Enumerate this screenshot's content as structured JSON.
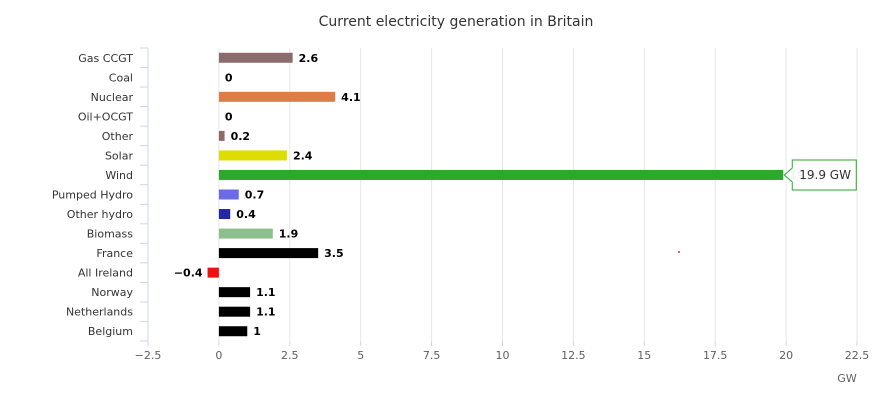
{
  "chart_data": {
    "type": "bar",
    "orientation": "horizontal",
    "title": "Current electricity generation in Britain",
    "xlabel": "GW",
    "ylabel": "",
    "xlim": [
      -2.5,
      22.5
    ],
    "xticks": [
      -2.5,
      0,
      2.5,
      5,
      7.5,
      10,
      12.5,
      15,
      17.5,
      20,
      22.5
    ],
    "xtick_labels": [
      "−2.5",
      "0",
      "2.5",
      "5",
      "7.5",
      "10",
      "12.5",
      "15",
      "17.5",
      "20",
      "22.5"
    ],
    "grid": true,
    "legend": "none",
    "categories": [
      "Gas CCGT",
      "Coal",
      "Nuclear",
      "Oil+OCGT",
      "Other",
      "Solar",
      "Wind",
      "Pumped Hydro",
      "Other hydro",
      "Biomass",
      "France",
      "All Ireland",
      "Norway",
      "Netherlands",
      "Belgium"
    ],
    "values": [
      2.6,
      0,
      4.1,
      0,
      0.2,
      2.4,
      19.9,
      0.7,
      0.4,
      1.9,
      3.5,
      -0.4,
      1.1,
      1.1,
      1
    ],
    "value_labels": [
      "2.6",
      "0",
      "4.1",
      "0",
      "0.2",
      "2.4",
      "19.9",
      "0.7",
      "0.4",
      "1.9",
      "3.5",
      "−0.4",
      "1.1",
      "1.1",
      "1"
    ],
    "colors": [
      "#8B6B6B",
      "#333333",
      "#E07B4A",
      "#333333",
      "#8B6B6B",
      "#DDDD00",
      "#2CA92C",
      "#6B6BE8",
      "#2525A8",
      "#8CBF8C",
      "#000000",
      "#EE1111",
      "#000000",
      "#000000",
      "#000000"
    ],
    "tooltip": {
      "category": "Wind",
      "text": "19.9 GW",
      "border_color": "#2CA92C"
    }
  }
}
